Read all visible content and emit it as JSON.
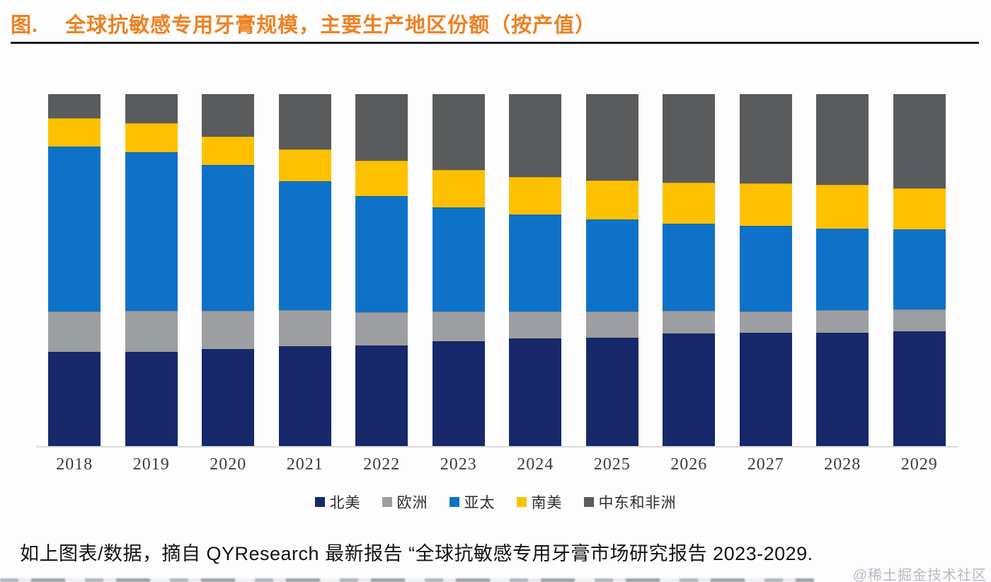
{
  "header": {
    "figure_label": "图.",
    "title": "全球抗敏感专用牙膏规模，主要生产地区份额（按产值）"
  },
  "chart_data": {
    "type": "bar",
    "stacked": true,
    "normalized_percent": true,
    "title": "全球抗敏感专用牙膏规模，主要生产地区份额（按产值）",
    "xlabel": "",
    "ylabel": "",
    "ylim": [
      0,
      100
    ],
    "grid": false,
    "legend_position": "bottom",
    "categories": [
      "2018",
      "2019",
      "2020",
      "2021",
      "2022",
      "2023",
      "2024",
      "2025",
      "2026",
      "2027",
      "2028",
      "2029"
    ],
    "series": [
      {
        "name": "北美",
        "color": "#17296b",
        "values": [
          26.8,
          26.8,
          27.5,
          28.3,
          28.5,
          29.8,
          30.5,
          30.8,
          31.9,
          32.1,
          32.1,
          32.5
        ]
      },
      {
        "name": "欧洲",
        "color": "#9c9ea1",
        "values": [
          11.5,
          11.7,
          10.9,
          10.3,
          9.5,
          8.5,
          7.7,
          7.5,
          6.5,
          6.1,
          6.5,
          6.3
        ]
      },
      {
        "name": "亚太",
        "color": "#0e73c8",
        "values": [
          46.8,
          45.0,
          41.4,
          36.6,
          33.0,
          29.5,
          27.7,
          26.1,
          24.8,
          24.4,
          23.2,
          22.8
        ]
      },
      {
        "name": "南美",
        "color": "#fdc101",
        "values": [
          8.0,
          8.2,
          8.2,
          9.2,
          10.0,
          10.7,
          10.6,
          11.1,
          11.7,
          12.1,
          12.5,
          11.7
        ]
      },
      {
        "name": "中东和非洲",
        "color": "#5a5b5d",
        "values": [
          6.9,
          8.3,
          12.0,
          15.6,
          19.0,
          21.5,
          23.5,
          24.5,
          25.1,
          25.3,
          25.7,
          26.7
        ]
      }
    ]
  },
  "footer": {
    "source_text": "如上图表/数据，摘自 QYResearch 最新报告 “全球抗敏感专用牙膏市场研究报告 2023-2029.",
    "watermark": "@稀土掘金技术社区"
  },
  "colors": {
    "title_orange": "#ee8121",
    "underline_dark": "#181a20",
    "axis_line_gray": "#d9d9d9"
  }
}
